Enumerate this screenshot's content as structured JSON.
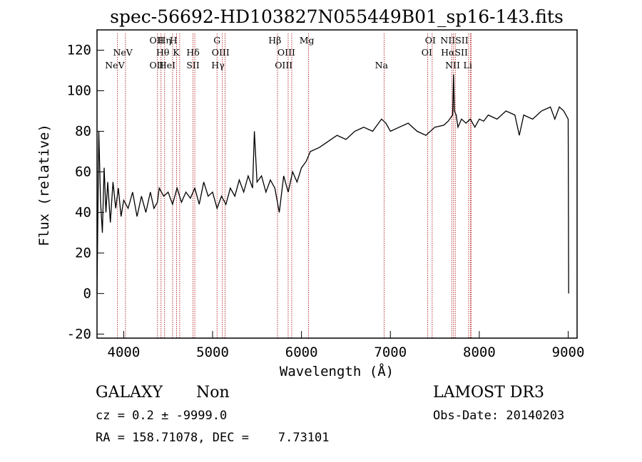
{
  "chart_data": {
    "type": "line",
    "title": "spec-56692-HD103827N055449B01_sp16-143.fits",
    "xlabel": "Wavelength (Å)",
    "ylabel": "Flux (relative)",
    "xlim": [
      3700,
      9100
    ],
    "ylim": [
      -22,
      130
    ],
    "x_ticks": [
      4000,
      5000,
      6000,
      7000,
      8000,
      9000
    ],
    "y_ticks": [
      -20,
      0,
      20,
      40,
      60,
      80,
      100,
      120
    ],
    "grid": false,
    "line_color": "#000000",
    "marker_color": "#b22222",
    "series": [
      {
        "x": [
          3700,
          3720,
          3740,
          3760,
          3780,
          3800,
          3820,
          3850,
          3880,
          3910,
          3940,
          3970,
          4000,
          4050,
          4100,
          4150,
          4200,
          4250,
          4300,
          4340,
          4380,
          4400,
          4450,
          4500,
          4550,
          4600,
          4650,
          4700,
          4750,
          4800,
          4850,
          4900,
          4950,
          5000,
          5050,
          5100,
          5150,
          5200,
          5250,
          5300,
          5350,
          5400,
          5450,
          5470,
          5500,
          5550,
          5600,
          5650,
          5700,
          5750,
          5800,
          5850,
          5900,
          5950,
          6000,
          6050,
          6100,
          6200,
          6300,
          6400,
          6500,
          6600,
          6700,
          6800,
          6900,
          6950,
          7000,
          7100,
          7200,
          7300,
          7400,
          7500,
          7600,
          7650,
          7700,
          7710,
          7720,
          7740,
          7760,
          7800,
          7850,
          7900,
          7950,
          8000,
          8050,
          8100,
          8200,
          8300,
          8400,
          8450,
          8500,
          8600,
          8700,
          8800,
          8850,
          8900,
          8950,
          9000,
          9005
        ],
        "y": [
          0,
          80,
          45,
          30,
          62,
          40,
          55,
          35,
          55,
          42,
          52,
          38,
          46,
          42,
          50,
          38,
          48,
          40,
          50,
          42,
          45,
          52,
          48,
          50,
          44,
          52,
          45,
          50,
          47,
          52,
          44,
          55,
          48,
          50,
          42,
          48,
          44,
          52,
          48,
          56,
          50,
          58,
          52,
          80,
          55,
          58,
          50,
          56,
          52,
          40,
          58,
          50,
          60,
          55,
          62,
          65,
          70,
          72,
          75,
          78,
          76,
          80,
          82,
          80,
          86,
          84,
          80,
          82,
          84,
          80,
          78,
          82,
          83,
          85,
          88,
          108,
          90,
          88,
          82,
          86,
          84,
          86,
          82,
          86,
          85,
          88,
          86,
          90,
          88,
          78,
          88,
          86,
          90,
          92,
          86,
          92,
          90,
          86,
          0
        ]
      }
    ],
    "lines_top": [
      {
        "label": "NeV",
        "x": 3930
      },
      {
        "label": "NeV",
        "x": 4020
      },
      {
        "label": "OII",
        "x": 4380
      },
      {
        "label": "Hη",
        "x": 4420
      },
      {
        "label": "Hθ",
        "x": 4460
      },
      {
        "label": "H",
        "x": 4550
      },
      {
        "label": "K",
        "x": 4595
      },
      {
        "label": "HeI",
        "x": 4630
      },
      {
        "label": "Hδ",
        "x": 4780
      },
      {
        "label": "SII",
        "x": 4800
      },
      {
        "label": "G",
        "x": 5050
      },
      {
        "label": "OIII",
        "x": 5110
      },
      {
        "label": "Hγ",
        "x": 5140
      },
      {
        "label": "Hβ",
        "x": 5730
      },
      {
        "label": "OIII",
        "x": 5850
      },
      {
        "label": "OIII",
        "x": 5890
      },
      {
        "label": "Mg",
        "x": 6080
      },
      {
        "label": "Na",
        "x": 6930
      },
      {
        "label": "OI",
        "x": 7420
      },
      {
        "label": "OI",
        "x": 7470
      },
      {
        "label": "NII",
        "x": 7690
      },
      {
        "label": "Hα",
        "x": 7710
      },
      {
        "label": "NII",
        "x": 7730
      },
      {
        "label": "SII",
        "x": 7880
      },
      {
        "label": "SII",
        "x": 7910
      },
      {
        "label": "Li",
        "x": 7900
      }
    ]
  },
  "text_labels": [
    {
      "t": "NeV",
      "wl": 3990,
      "row": 2
    },
    {
      "t": "NeV",
      "wl": 3900,
      "row": 3
    },
    {
      "t": "OII",
      "wl": 4370,
      "row": 1
    },
    {
      "t": "Hη",
      "wl": 4460,
      "row": 1
    },
    {
      "t": "H",
      "wl": 4560,
      "row": 1
    },
    {
      "t": "Hθ",
      "wl": 4440,
      "row": 2
    },
    {
      "t": "K",
      "wl": 4590,
      "row": 2
    },
    {
      "t": "OII",
      "wl": 4370,
      "row": 3
    },
    {
      "t": "HeI",
      "wl": 4490,
      "row": 3
    },
    {
      "t": "Hδ",
      "wl": 4780,
      "row": 2
    },
    {
      "t": "SII",
      "wl": 4780,
      "row": 3
    },
    {
      "t": "G",
      "wl": 5050,
      "row": 1
    },
    {
      "t": "OIII",
      "wl": 5090,
      "row": 2
    },
    {
      "t": "Hγ",
      "wl": 5060,
      "row": 3
    },
    {
      "t": "Hβ",
      "wl": 5700,
      "row": 1
    },
    {
      "t": "OIII",
      "wl": 5830,
      "row": 2
    },
    {
      "t": "OIII",
      "wl": 5800,
      "row": 3
    },
    {
      "t": "Mg",
      "wl": 6060,
      "row": 1
    },
    {
      "t": "Na",
      "wl": 6900,
      "row": 3
    },
    {
      "t": "OI",
      "wl": 7450,
      "row": 1
    },
    {
      "t": "OI",
      "wl": 7410,
      "row": 2
    },
    {
      "t": "NIISII",
      "wl": 7720,
      "row": 1
    },
    {
      "t": "HαSII",
      "wl": 7720,
      "row": 2
    },
    {
      "t": "NII",
      "wl": 7700,
      "row": 3
    },
    {
      "t": "Li",
      "wl": 7870,
      "row": 3
    }
  ],
  "footer": {
    "class_label": "GALAXY",
    "subclass_label": "Non",
    "cz_text": "cz = 0.2 ± -9999.0",
    "radec_text": "RA = 158.71078, DEC =    7.73101",
    "survey_label": "LAMOST DR3",
    "obsdate_text": "Obs-Date: 20140203"
  }
}
